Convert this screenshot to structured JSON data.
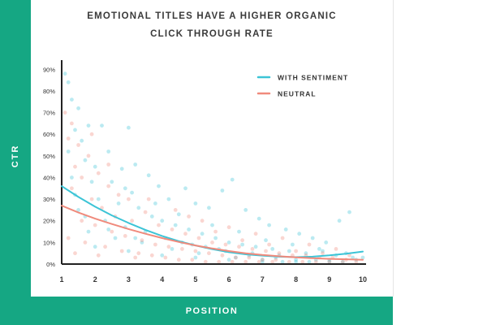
{
  "colors": {
    "accent": "#15a783",
    "with_sentiment": "#3cc4d6",
    "neutral": "#f08a7c",
    "axis": "#222222",
    "text": "#3a3a3a"
  },
  "chart_data": {
    "type": "scatter",
    "title_lines": [
      "EMOTIONAL TITLES HAVE A HIGHER ORGANIC",
      "CLICK THROUGH RATE"
    ],
    "xlabel": "POSITION",
    "ylabel": "CTR",
    "xlim": [
      1,
      10
    ],
    "ylim": [
      0,
      92
    ],
    "x_ticks": [
      "1",
      "2",
      "3",
      "4",
      "5",
      "6",
      "7",
      "8",
      "9",
      "10"
    ],
    "y_ticks": [
      "0%",
      "10%",
      "20%",
      "30%",
      "40%",
      "50%",
      "60%",
      "70%",
      "80%",
      "90%"
    ],
    "legend_position": "top-right",
    "series": [
      {
        "name": "WITH SENTIMENT",
        "trend": {
          "x": [
            1,
            1.5,
            2,
            2.5,
            3,
            3.5,
            4,
            4.5,
            5,
            5.5,
            6,
            6.5,
            7,
            7.5,
            8,
            8.5,
            9,
            9.5,
            10
          ],
          "y": [
            36,
            31,
            26.5,
            22.5,
            19,
            15.8,
            13,
            10.6,
            8.6,
            6.9,
            5.5,
            4.5,
            3.9,
            3.4,
            3.2,
            3.4,
            4,
            4.8,
            5.8
          ]
        },
        "points": [
          [
            1.1,
            88
          ],
          [
            1.2,
            84
          ],
          [
            1.3,
            76
          ],
          [
            1.5,
            72
          ],
          [
            1.4,
            62
          ],
          [
            1.6,
            57
          ],
          [
            1.8,
            64
          ],
          [
            2.2,
            64
          ],
          [
            1.2,
            52
          ],
          [
            1.7,
            48
          ],
          [
            2.0,
            45
          ],
          [
            2.4,
            52
          ],
          [
            2.8,
            44
          ],
          [
            3.0,
            63
          ],
          [
            3.2,
            46
          ],
          [
            1.3,
            40
          ],
          [
            1.9,
            38
          ],
          [
            2.5,
            38
          ],
          [
            3.1,
            33
          ],
          [
            3.6,
            41
          ],
          [
            3.9,
            36
          ],
          [
            4.2,
            30
          ],
          [
            4.7,
            35
          ],
          [
            5.0,
            28
          ],
          [
            5.4,
            26
          ],
          [
            5.8,
            34
          ],
          [
            6.1,
            39
          ],
          [
            6.5,
            25
          ],
          [
            6.9,
            21
          ],
          [
            7.2,
            18
          ],
          [
            7.7,
            16
          ],
          [
            8.1,
            14
          ],
          [
            8.5,
            12
          ],
          [
            8.9,
            10
          ],
          [
            9.3,
            20
          ],
          [
            9.6,
            24
          ],
          [
            2.1,
            30
          ],
          [
            2.7,
            28
          ],
          [
            3.3,
            26
          ],
          [
            3.7,
            22
          ],
          [
            4.0,
            20
          ],
          [
            4.4,
            18
          ],
          [
            4.8,
            16
          ],
          [
            5.2,
            14
          ],
          [
            5.6,
            12
          ],
          [
            6.0,
            10
          ],
          [
            6.4,
            9
          ],
          [
            6.8,
            8
          ],
          [
            7.3,
            7
          ],
          [
            7.8,
            6
          ],
          [
            8.3,
            5
          ],
          [
            8.8,
            6
          ],
          [
            9.2,
            4
          ],
          [
            9.7,
            3
          ],
          [
            1.5,
            25
          ],
          [
            2.3,
            20
          ],
          [
            2.9,
            17
          ],
          [
            3.5,
            15
          ],
          [
            4.1,
            12
          ],
          [
            4.6,
            10
          ],
          [
            5.3,
            8
          ],
          [
            5.9,
            6
          ],
          [
            6.6,
            4
          ],
          [
            7.4,
            3
          ],
          [
            8.0,
            2
          ],
          [
            8.6,
            2
          ],
          [
            9.4,
            1
          ],
          [
            1.8,
            15
          ],
          [
            2.6,
            12
          ],
          [
            3.4,
            10
          ],
          [
            4.3,
            7
          ],
          [
            5.1,
            5
          ],
          [
            6.2,
            3
          ],
          [
            7.0,
            2
          ],
          [
            7.6,
            1
          ],
          [
            8.4,
            1
          ],
          [
            9.0,
            1
          ],
          [
            9.8,
            2
          ],
          [
            2.0,
            8
          ],
          [
            3.0,
            6
          ],
          [
            4.0,
            4
          ],
          [
            5.0,
            3
          ],
          [
            6.0,
            2
          ],
          [
            7.0,
            1
          ],
          [
            8.0,
            1
          ],
          [
            9.0,
            2
          ],
          [
            10.0,
            3
          ],
          [
            4.5,
            23
          ],
          [
            5.5,
            18
          ],
          [
            6.3,
            15
          ],
          [
            7.1,
            11
          ],
          [
            7.9,
            9
          ],
          [
            8.7,
            7
          ],
          [
            9.5,
            5
          ],
          [
            3.8,
            28
          ],
          [
            2.9,
            35
          ],
          [
            1.4,
            32
          ],
          [
            1.7,
            22
          ],
          [
            2.4,
            16
          ],
          [
            3.2,
            12
          ],
          [
            4.9,
            9
          ],
          [
            5.7,
            7
          ],
          [
            6.7,
            5
          ],
          [
            7.5,
            4
          ]
        ]
      },
      {
        "name": "NEUTRAL",
        "trend": {
          "x": [
            1,
            1.5,
            2,
            2.5,
            3,
            3.5,
            4,
            4.5,
            5,
            5.5,
            6,
            6.5,
            7,
            7.5,
            8,
            8.5,
            9,
            9.5,
            10
          ],
          "y": [
            27,
            23.8,
            21,
            18.5,
            16.2,
            14,
            12,
            10.2,
            8.6,
            7.2,
            6,
            5,
            4.2,
            3.6,
            3.1,
            2.7,
            2.4,
            2.2,
            2
          ]
        },
        "points": [
          [
            1.1,
            70
          ],
          [
            1.3,
            65
          ],
          [
            1.2,
            58
          ],
          [
            1.5,
            55
          ],
          [
            1.4,
            45
          ],
          [
            1.6,
            40
          ],
          [
            1.8,
            50
          ],
          [
            2.1,
            42
          ],
          [
            2.4,
            36
          ],
          [
            2.7,
            32
          ],
          [
            3.0,
            30
          ],
          [
            1.3,
            35
          ],
          [
            1.9,
            30
          ],
          [
            2.2,
            26
          ],
          [
            2.6,
            22
          ],
          [
            3.1,
            20
          ],
          [
            3.5,
            24
          ],
          [
            3.9,
            18
          ],
          [
            4.3,
            16
          ],
          [
            4.7,
            14
          ],
          [
            5.1,
            12
          ],
          [
            5.5,
            10
          ],
          [
            5.9,
            9
          ],
          [
            6.3,
            8
          ],
          [
            6.7,
            7
          ],
          [
            7.1,
            6
          ],
          [
            7.5,
            5
          ],
          [
            7.9,
            4
          ],
          [
            8.3,
            4
          ],
          [
            8.7,
            3
          ],
          [
            9.1,
            3
          ],
          [
            9.5,
            2
          ],
          [
            1.6,
            20
          ],
          [
            2.0,
            18
          ],
          [
            2.5,
            15
          ],
          [
            2.9,
            13
          ],
          [
            3.4,
            11
          ],
          [
            3.8,
            9
          ],
          [
            4.2,
            8
          ],
          [
            4.6,
            7
          ],
          [
            5.0,
            6
          ],
          [
            5.4,
            5
          ],
          [
            5.8,
            4
          ],
          [
            6.2,
            3
          ],
          [
            6.6,
            3
          ],
          [
            7.0,
            2
          ],
          [
            7.4,
            2
          ],
          [
            7.8,
            1
          ],
          [
            8.2,
            1
          ],
          [
            8.6,
            1
          ],
          [
            9.0,
            1
          ],
          [
            9.4,
            1
          ],
          [
            9.8,
            1
          ],
          [
            1.2,
            12
          ],
          [
            1.7,
            10
          ],
          [
            2.3,
            8
          ],
          [
            2.8,
            6
          ],
          [
            3.3,
            5
          ],
          [
            3.7,
            4
          ],
          [
            4.1,
            3
          ],
          [
            4.5,
            2
          ],
          [
            4.9,
            2
          ],
          [
            5.3,
            1
          ],
          [
            5.7,
            1
          ],
          [
            6.1,
            1
          ],
          [
            6.5,
            1
          ],
          [
            6.9,
            1
          ],
          [
            7.3,
            1
          ],
          [
            1.4,
            5
          ],
          [
            2.1,
            4
          ],
          [
            3.2,
            3
          ],
          [
            4.4,
            25
          ],
          [
            5.2,
            20
          ],
          [
            6.0,
            17
          ],
          [
            6.8,
            14
          ],
          [
            7.6,
            12
          ],
          [
            8.4,
            9
          ],
          [
            9.2,
            7
          ],
          [
            3.6,
            30
          ],
          [
            2.4,
            46
          ],
          [
            1.9,
            60
          ],
          [
            4.8,
            22
          ],
          [
            5.6,
            15
          ],
          [
            6.4,
            11
          ],
          [
            7.2,
            9
          ],
          [
            8.0,
            6
          ],
          [
            8.8,
            5
          ],
          [
            9.6,
            4
          ]
        ]
      }
    ]
  }
}
